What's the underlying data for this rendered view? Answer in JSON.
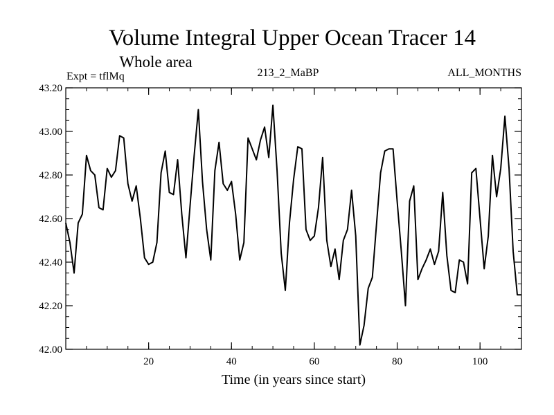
{
  "chart_data": {
    "type": "line",
    "title": "Volume Integral Upper Ocean Tracer 14",
    "subtitle": "Whole area",
    "annotation_left": "Expt = tflMq",
    "annotation_center": "213_2_MaBP",
    "annotation_right": "ALL_MONTHS",
    "xlabel": "Time (in years since start)",
    "ylabel": "",
    "xlim": [
      0,
      110
    ],
    "ylim": [
      42.0,
      43.2
    ],
    "xticks": [
      20,
      40,
      60,
      80,
      100
    ],
    "xtick_labels": [
      "20",
      "40",
      "60",
      "80",
      "100"
    ],
    "yticks": [
      42.0,
      42.2,
      42.4,
      42.6,
      42.8,
      43.0,
      43.2
    ],
    "ytick_labels": [
      "42.00",
      "42.20",
      "42.40",
      "42.60",
      "42.80",
      "43.00",
      "43.20"
    ],
    "grid": false,
    "series": [
      {
        "name": "Tracer 14",
        "color": "#000000",
        "x": [
          0,
          1,
          2,
          3,
          4,
          5,
          6,
          7,
          8,
          9,
          10,
          11,
          12,
          13,
          14,
          15,
          16,
          17,
          18,
          19,
          20,
          21,
          22,
          23,
          24,
          25,
          26,
          27,
          28,
          29,
          30,
          31,
          32,
          33,
          34,
          35,
          36,
          37,
          38,
          39,
          40,
          41,
          42,
          43,
          44,
          45,
          46,
          47,
          48,
          49,
          50,
          51,
          52,
          53,
          54,
          55,
          56,
          57,
          58,
          59,
          60,
          61,
          62,
          63,
          64,
          65,
          66,
          67,
          68,
          69,
          70,
          71,
          72,
          73,
          74,
          75,
          76,
          77,
          78,
          79,
          80,
          81,
          82,
          83,
          84,
          85,
          86,
          87,
          88,
          89,
          90,
          91,
          92,
          93,
          94,
          95,
          96,
          97,
          98,
          99,
          100,
          101,
          102,
          103,
          104,
          105,
          106,
          107,
          108,
          109,
          110
        ],
        "values": [
          42.58,
          42.49,
          42.35,
          42.58,
          42.62,
          42.89,
          42.82,
          42.8,
          42.65,
          42.64,
          42.83,
          42.79,
          42.82,
          42.98,
          42.97,
          42.76,
          42.68,
          42.75,
          42.6,
          42.42,
          42.39,
          42.4,
          42.49,
          42.81,
          42.91,
          42.72,
          42.71,
          42.87,
          42.62,
          42.42,
          42.66,
          42.89,
          43.1,
          42.77,
          42.55,
          42.41,
          42.82,
          42.95,
          42.76,
          42.73,
          42.77,
          42.62,
          42.41,
          42.49,
          42.97,
          42.92,
          42.87,
          42.96,
          43.02,
          42.88,
          43.12,
          42.82,
          42.44,
          42.27,
          42.58,
          42.78,
          42.93,
          42.92,
          42.55,
          42.5,
          42.52,
          42.65,
          42.88,
          42.5,
          42.38,
          42.46,
          42.32,
          42.5,
          42.55,
          42.73,
          42.52,
          42.02,
          42.11,
          42.28,
          42.33,
          42.57,
          42.81,
          42.91,
          42.92,
          42.92,
          42.68,
          42.45,
          42.2,
          42.68,
          42.75,
          42.32,
          42.37,
          42.41,
          42.46,
          42.39,
          42.45,
          42.72,
          42.43,
          42.27,
          42.26,
          42.41,
          42.4,
          42.3,
          42.81,
          42.83,
          42.6,
          42.37,
          42.52,
          42.89,
          42.7,
          42.83,
          43.07,
          42.83,
          42.45,
          42.25,
          42.25
        ]
      }
    ]
  }
}
